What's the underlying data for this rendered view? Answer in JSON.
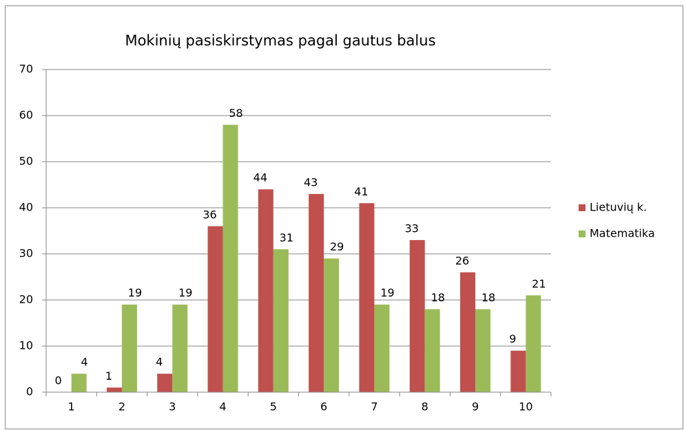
{
  "chart_data": {
    "type": "bar",
    "title": "Mokinių pasiskirstymas pagal gautus balus",
    "categories": [
      "1",
      "2",
      "3",
      "4",
      "5",
      "6",
      "7",
      "8",
      "9",
      "10"
    ],
    "series": [
      {
        "name": "Lietuvių k.",
        "color": "#c0504d",
        "values": [
          0,
          1,
          4,
          36,
          44,
          43,
          41,
          33,
          26,
          9
        ]
      },
      {
        "name": "Matematika",
        "color": "#9bbb59",
        "values": [
          4,
          19,
          19,
          58,
          31,
          29,
          19,
          18,
          18,
          21
        ]
      }
    ],
    "ylim": [
      0,
      70
    ],
    "yticks": [
      0,
      10,
      20,
      30,
      40,
      50,
      60,
      70
    ],
    "grid": true,
    "legend": "right"
  }
}
